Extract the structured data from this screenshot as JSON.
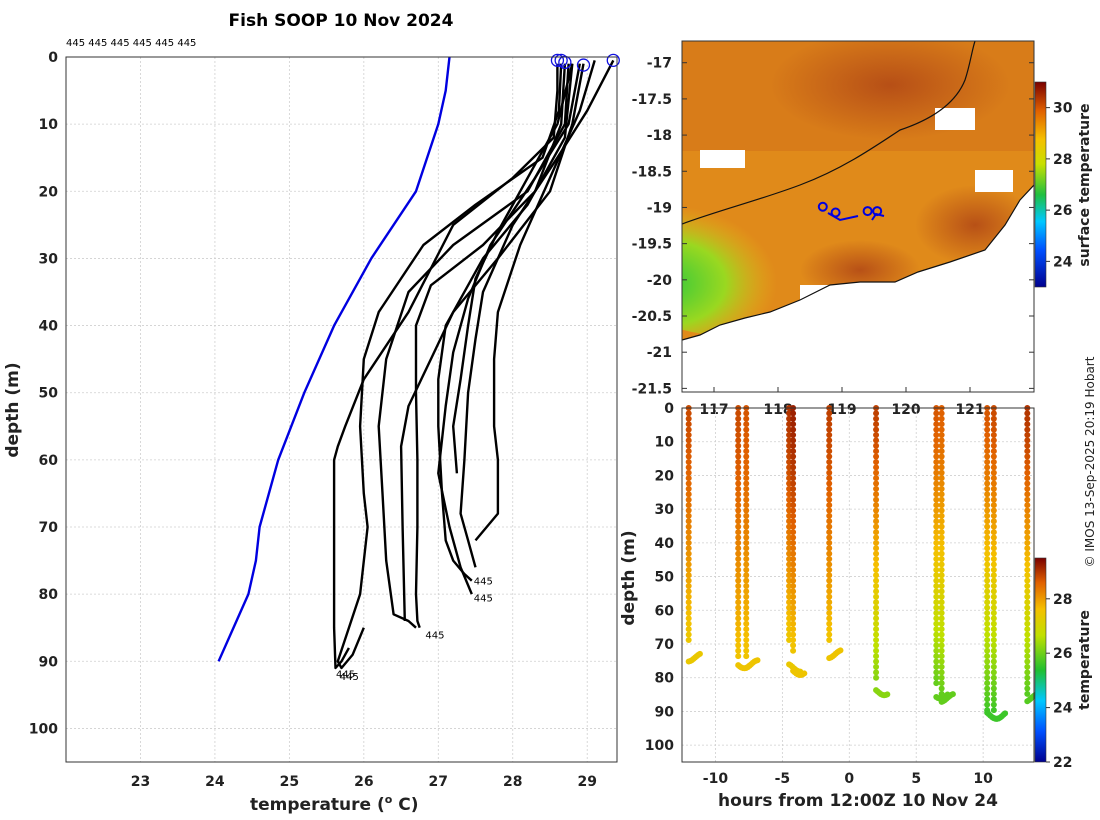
{
  "chart_data": [
    {
      "id": "profiles",
      "type": "line",
      "title": "Fish SOOP 10 Nov 2024",
      "xlabel": "temperature (",
      "xlabel_sup": "o",
      "xlabel_end": " C)",
      "ylabel": "depth (m)",
      "xlim": [
        22.0,
        29.4
      ],
      "ylim": [
        0,
        105
      ],
      "xticks": [
        23,
        24,
        25,
        26,
        27,
        28,
        29
      ],
      "yticks": [
        0,
        10,
        20,
        30,
        40,
        50,
        60,
        70,
        80,
        90,
        100
      ],
      "top_labels": [
        "445",
        "445",
        "445",
        "445",
        "445",
        "445"
      ],
      "end_labels": [
        {
          "text": "445",
          "t": 27.45,
          "d": 78
        },
        {
          "text": "445",
          "t": 27.45,
          "d": 80.5
        },
        {
          "text": "445",
          "t": 26.8,
          "d": 86
        },
        {
          "text": "445",
          "t": 25.6,
          "d": 91.8
        },
        {
          "text": "445",
          "t": 25.65,
          "d": 92.2
        }
      ],
      "markers": [
        {
          "t": 28.6,
          "d": 0.5
        },
        {
          "t": 28.65,
          "d": 0.5
        },
        {
          "t": 28.7,
          "d": 0.8
        },
        {
          "t": 28.95,
          "d": 1.2
        },
        {
          "t": 29.35,
          "d": 0.5
        }
      ],
      "series": [
        {
          "name": "climatology",
          "color": "#0000e0",
          "t": [
            27.15,
            27.1,
            27.0,
            26.7,
            26.1,
            25.6,
            25.2,
            24.85,
            24.6,
            24.55,
            24.45,
            24.05
          ],
          "d": [
            0,
            5,
            10,
            20,
            30,
            40,
            50,
            60,
            70,
            75,
            80,
            90
          ]
        },
        {
          "name": "profile-1",
          "color": "#000000",
          "t": [
            28.6,
            28.6,
            28.55,
            28.0,
            27.2,
            26.6,
            26.0,
            25.75,
            25.65,
            25.6,
            25.6,
            25.62,
            25.7,
            25.8
          ],
          "d": [
            1,
            5,
            12,
            18,
            25,
            38,
            48,
            55,
            58,
            60,
            85,
            91,
            90,
            88
          ]
        },
        {
          "name": "profile-2",
          "color": "#000000",
          "t": [
            28.65,
            28.62,
            28.4,
            27.5,
            26.8,
            26.2,
            26.0,
            25.95,
            26.0,
            26.05,
            25.95,
            25.65,
            25.7,
            25.85,
            26.0
          ],
          "d": [
            1,
            8,
            15,
            22,
            28,
            38,
            45,
            55,
            65,
            70,
            80,
            90,
            91,
            89,
            85
          ]
        },
        {
          "name": "profile-3",
          "color": "#000000",
          "t": [
            28.7,
            28.65,
            28.3,
            27.6,
            26.9,
            26.7,
            26.7,
            26.72,
            26.72,
            26.7,
            26.72,
            26.75
          ],
          "d": [
            1,
            10,
            20,
            28,
            34,
            40,
            50,
            60,
            70,
            80,
            84,
            85
          ]
        },
        {
          "name": "profile-4",
          "color": "#000000",
          "t": [
            28.75,
            28.7,
            28.2,
            27.2,
            26.6,
            26.3,
            26.2,
            26.25,
            26.3,
            26.4,
            26.6,
            26.7
          ],
          "d": [
            1,
            10,
            20,
            28,
            35,
            45,
            55,
            65,
            75,
            83,
            84,
            85
          ]
        },
        {
          "name": "profile-5",
          "color": "#000000",
          "t": [
            28.95,
            28.8,
            28.5,
            27.8,
            27.2,
            26.9,
            26.6,
            26.5,
            26.52,
            26.55
          ],
          "d": [
            1,
            10,
            20,
            30,
            38,
            45,
            52,
            58,
            70,
            84
          ]
        },
        {
          "name": "profile-6",
          "color": "#000000",
          "t": [
            28.8,
            28.7,
            28.2,
            27.6,
            27.1,
            27.0,
            27.0,
            27.05,
            27.1,
            27.2,
            27.35,
            27.45
          ],
          "d": [
            1,
            12,
            22,
            30,
            40,
            48,
            55,
            65,
            72,
            75,
            77,
            78
          ]
        },
        {
          "name": "profile-7",
          "color": "#000000",
          "t": [
            28.9,
            28.75,
            28.3,
            27.7,
            27.4,
            27.2,
            27.1,
            27.0,
            27.15,
            27.3,
            27.45
          ],
          "d": [
            1,
            10,
            18,
            28,
            36,
            44,
            52,
            62,
            70,
            76,
            80
          ]
        },
        {
          "name": "profile-8",
          "color": "#000000",
          "t": [
            29.35,
            29.0,
            28.6,
            28.0,
            27.6,
            27.5,
            27.4,
            27.35,
            27.3,
            27.4,
            27.5
          ],
          "d": [
            0.5,
            8,
            15,
            25,
            35,
            42,
            50,
            60,
            68,
            72,
            76
          ]
        },
        {
          "name": "profile-9",
          "color": "#000000",
          "t": [
            29.1,
            28.9,
            28.5,
            28.1,
            27.8,
            27.75,
            27.75,
            27.75,
            27.8,
            27.8,
            27.5
          ],
          "d": [
            0.5,
            8,
            18,
            28,
            38,
            45,
            50,
            55,
            60,
            68,
            72
          ]
        },
        {
          "name": "profile-10",
          "color": "#000000",
          "t": [
            28.8,
            28.6,
            28.2,
            27.8,
            27.5,
            27.4,
            27.3,
            27.2,
            27.25
          ],
          "d": [
            1,
            10,
            18,
            26,
            33,
            40,
            48,
            55,
            62
          ]
        }
      ]
    },
    {
      "id": "sst-map",
      "type": "heatmap",
      "colorbar_label": "surface temperature",
      "colorbar_range": [
        23,
        31
      ],
      "colorbar_ticks": [
        24,
        26,
        28,
        30
      ],
      "xlim": [
        116.5,
        122
      ],
      "ylim": [
        -21.55,
        -16.7
      ],
      "xticks": [
        117,
        118,
        119,
        120,
        121
      ],
      "yticks": [
        -17,
        -17.5,
        -18,
        -18.5,
        -19,
        -19.5,
        -20,
        -20.5,
        -21,
        -21.5
      ],
      "ytick_labels": [
        "-17",
        "-17.5",
        "-18",
        "-18.5",
        "-19",
        "-19.5",
        "-20",
        "-20.5",
        "-21",
        "-21.5"
      ],
      "stations": [
        {
          "lon": 118.7,
          "lat": -18.99
        },
        {
          "lon": 118.9,
          "lat": -19.07
        },
        {
          "lon": 119.4,
          "lat": -19.05
        },
        {
          "lon": 119.55,
          "lat": -19.05
        }
      ]
    },
    {
      "id": "time-section",
      "type": "scatter",
      "colorbar_label": "temperature",
      "colorbar_range": [
        22,
        29.5
      ],
      "colorbar_ticks": [
        22,
        24,
        26,
        28
      ],
      "xlabel": "hours from 12:00Z 10 Nov 24",
      "ylabel": "depth (m)",
      "xlim": [
        -12.5,
        13.8
      ],
      "ylim": [
        0,
        105
      ],
      "xticks": [
        -10,
        -5,
        0,
        5,
        10
      ],
      "xtick_labels": [
        "-10",
        "-5",
        "0",
        "5",
        "10"
      ],
      "yticks": [
        0,
        10,
        20,
        30,
        40,
        50,
        60,
        70,
        80,
        90,
        100
      ],
      "casts": [
        {
          "hour": -12.0,
          "max_depth": 70,
          "bottom": 74,
          "tsurf": 28.8,
          "tbot": 27.4
        },
        {
          "hour": -8.3,
          "max_depth": 75,
          "bottom": 76,
          "tsurf": 28.8,
          "tbot": 27.5
        },
        {
          "hour": -7.7,
          "max_depth": 74,
          "bottom": 76,
          "tsurf": 28.7,
          "tbot": 27.5
        },
        {
          "hour": -4.5,
          "max_depth": 70,
          "bottom": 77,
          "tsurf": 29.0,
          "tbot": 27.4
        },
        {
          "hour": -4.2,
          "max_depth": 72,
          "bottom": 78,
          "tsurf": 29.2,
          "tbot": 27.5
        },
        {
          "hour": -1.5,
          "max_depth": 70,
          "bottom": 73,
          "tsurf": 28.9,
          "tbot": 27.5
        },
        {
          "hour": 2.0,
          "max_depth": 80,
          "bottom": 84,
          "tsurf": 28.9,
          "tbot": 26.2
        },
        {
          "hour": 6.5,
          "max_depth": 82,
          "bottom": 85,
          "tsurf": 28.7,
          "tbot": 25.9
        },
        {
          "hour": 6.9,
          "max_depth": 85,
          "bottom": 86,
          "tsurf": 28.6,
          "tbot": 25.9
        },
        {
          "hour": 10.3,
          "max_depth": 90,
          "bottom": 91,
          "tsurf": 28.7,
          "tbot": 25.6
        },
        {
          "hour": 10.8,
          "max_depth": 90,
          "bottom": 91,
          "tsurf": 28.8,
          "tbot": 25.6
        },
        {
          "hour": 13.3,
          "max_depth": 85,
          "bottom": 86,
          "tsurf": 29.0,
          "tbot": 25.8
        }
      ]
    }
  ],
  "credit": "© IMOS 13-Sep-2025 20:19 Hobart"
}
